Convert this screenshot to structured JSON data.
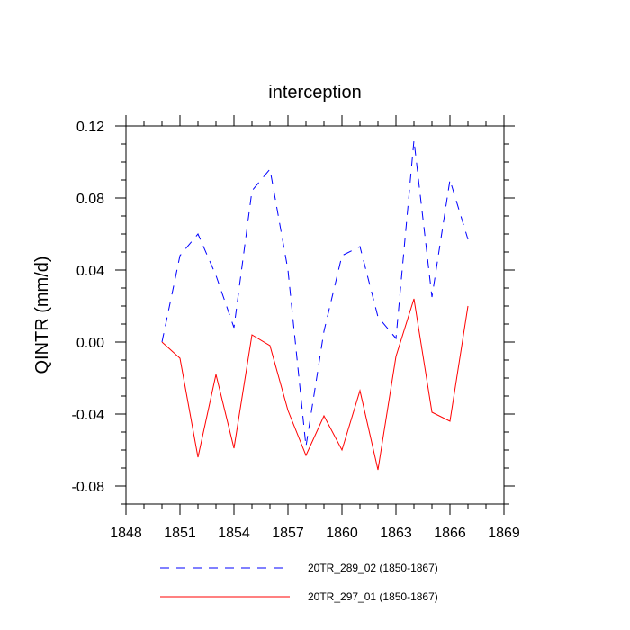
{
  "chart_data": {
    "type": "line",
    "title": "interception",
    "xlabel": "",
    "ylabel": "QINTR  (mm/d)",
    "xlim": [
      1848,
      1869
    ],
    "ylim": [
      -0.09,
      0.12
    ],
    "xticks": [
      1848,
      1851,
      1854,
      1857,
      1860,
      1863,
      1866,
      1869
    ],
    "xtick_labels": [
      "1848",
      "1851",
      "1854",
      "1857",
      "1860",
      "1863",
      "1866",
      "1869"
    ],
    "yticks": [
      -0.08,
      -0.04,
      0.0,
      0.04,
      0.08,
      0.12
    ],
    "ytick_labels": [
      "-0.08",
      "-0.04",
      "0.00",
      "0.04",
      "0.08",
      "0.12"
    ],
    "grid": false,
    "legend_position": "bottom",
    "x": [
      1850,
      1851,
      1852,
      1853,
      1854,
      1855,
      1856,
      1857,
      1858,
      1859,
      1860,
      1861,
      1862,
      1863,
      1864,
      1865,
      1866,
      1867
    ],
    "series": [
      {
        "name": "20TR_289_02 (1850-1867)",
        "color": "#0000ff",
        "dash": "dashed",
        "values": [
          0.0,
          0.048,
          0.06,
          0.037,
          0.008,
          0.084,
          0.096,
          0.04,
          -0.058,
          0.006,
          0.048,
          0.053,
          0.014,
          0.002,
          0.112,
          0.025,
          0.09,
          0.057
        ]
      },
      {
        "name": "20TR_297_01 (1850-1867)",
        "color": "#ff0000",
        "dash": "solid",
        "values": [
          0.0,
          -0.009,
          -0.064,
          -0.018,
          -0.059,
          0.004,
          -0.002,
          -0.038,
          -0.063,
          -0.041,
          -0.06,
          -0.027,
          -0.071,
          -0.008,
          0.024,
          -0.039,
          -0.044,
          0.02
        ]
      }
    ]
  }
}
